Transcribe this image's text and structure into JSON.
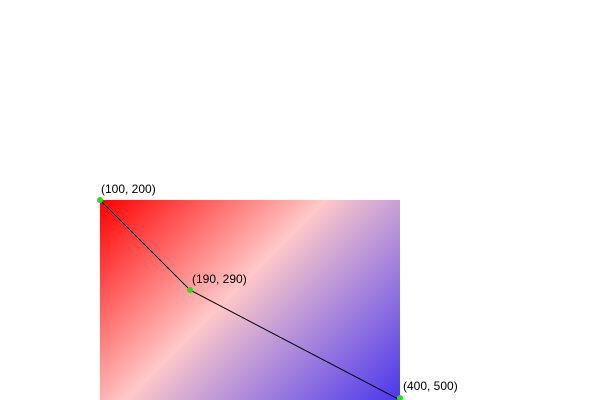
{
  "points": [
    {
      "label": "(100, 200)"
    },
    {
      "label": "(190, 290)"
    },
    {
      "label": "(400, 500)"
    }
  ],
  "colors": {
    "gradient_start": "#ff0000",
    "gradient_mid_light": "#ffc8c8",
    "gradient_mid": "#c8a0d6",
    "gradient_end": "#4a37ee",
    "point_marker": "#22dd22",
    "line": "#000000",
    "background": "#ffffff"
  }
}
